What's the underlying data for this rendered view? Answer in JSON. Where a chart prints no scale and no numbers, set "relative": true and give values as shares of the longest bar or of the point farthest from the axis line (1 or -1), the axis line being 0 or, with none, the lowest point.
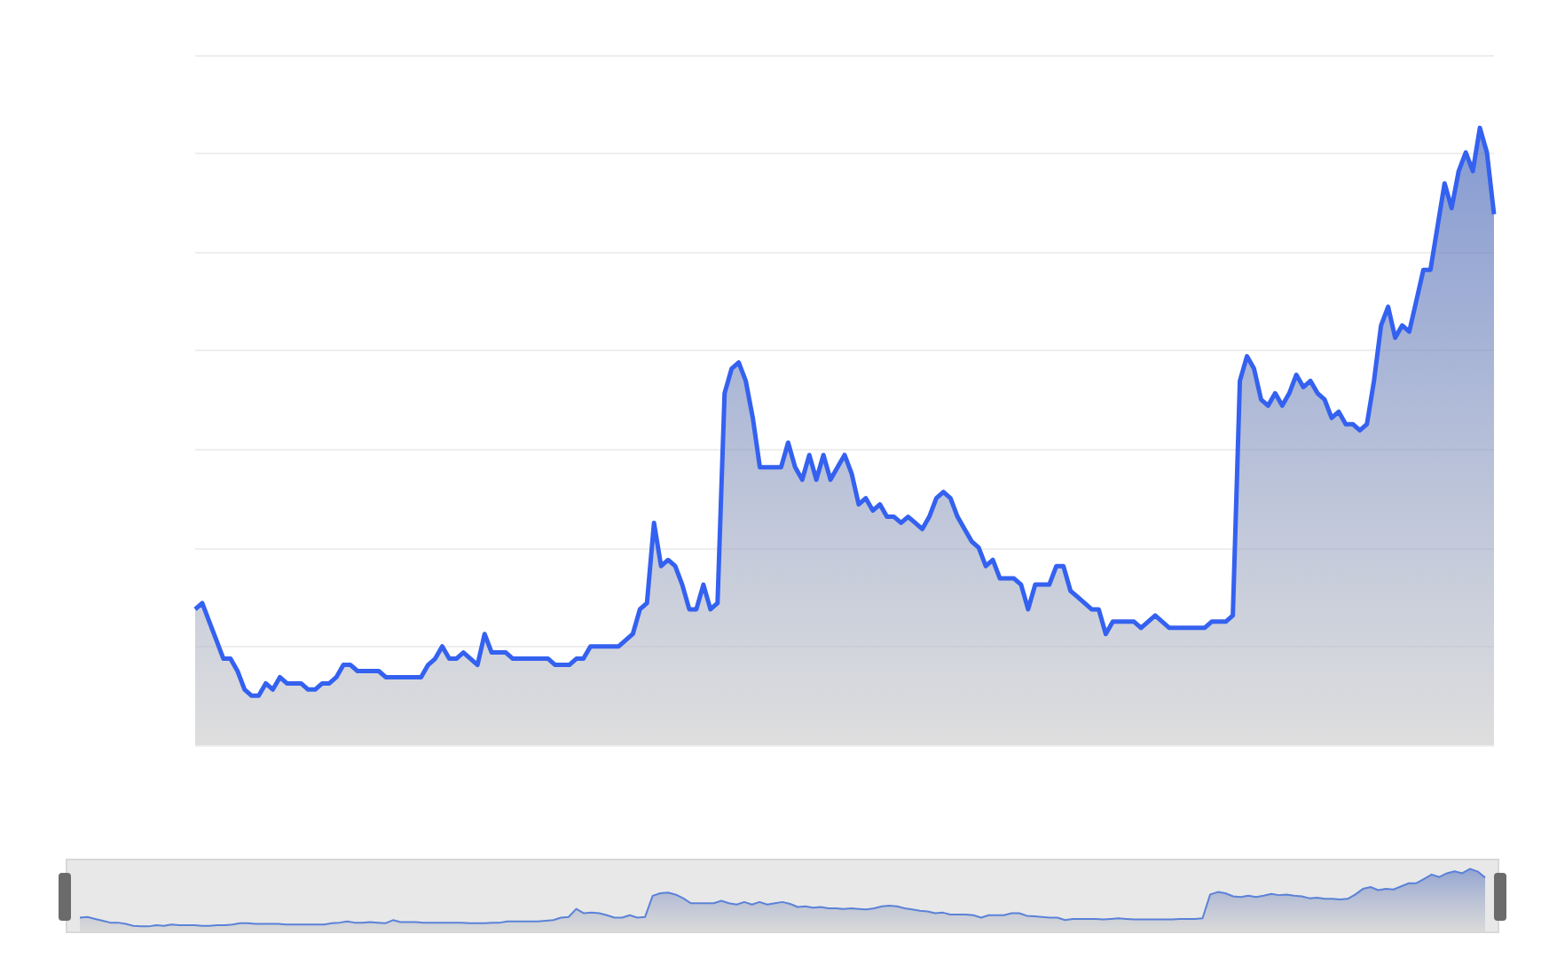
{
  "chart_data": [
    {
      "type": "area",
      "relative": true,
      "grid": "y",
      "line_style": "solid",
      "categories": [
        null,
        null,
        null,
        null,
        null,
        null,
        null,
        null,
        null,
        null,
        null,
        null,
        null,
        null,
        null,
        null,
        null,
        null,
        null,
        null,
        null,
        null,
        null,
        null,
        null,
        null,
        null,
        null,
        null,
        null,
        null,
        null,
        null,
        null,
        null,
        null,
        null,
        null,
        null,
        null,
        null,
        null,
        null,
        null,
        null,
        null,
        null,
        null,
        null,
        null,
        null,
        null,
        null,
        null,
        null,
        null,
        null,
        null,
        null,
        null,
        null,
        null,
        null,
        null,
        null,
        null,
        null,
        null,
        null,
        null,
        null,
        null,
        null,
        null,
        null,
        null,
        null,
        null,
        null,
        null,
        null,
        null,
        null,
        null,
        null,
        null,
        null,
        null,
        null,
        null,
        null,
        null,
        null,
        null,
        null,
        null,
        null,
        null,
        null,
        null,
        null,
        null,
        null,
        null,
        null,
        null,
        null,
        null,
        null,
        null,
        null,
        null,
        null,
        null,
        null,
        null,
        null,
        null,
        null,
        null,
        null,
        null,
        null,
        null,
        null,
        null,
        null,
        null,
        null,
        null,
        null,
        null,
        null,
        null,
        null,
        null,
        null,
        null,
        null,
        null,
        null,
        null,
        null,
        null,
        null,
        null,
        null,
        null,
        null,
        null,
        null,
        null,
        null,
        null,
        null,
        null,
        null,
        null,
        null,
        null,
        null,
        null,
        null,
        null,
        null,
        null,
        null,
        null,
        null,
        null,
        null,
        null,
        null,
        null,
        null,
        null,
        null,
        null,
        null,
        null,
        null,
        null,
        null,
        null,
        null
      ],
      "series": [
        {
          "color": "#3461f0",
          "values": [
            0.22,
            0.23,
            0.2,
            0.17,
            0.14,
            0.14,
            0.12,
            0.09,
            0.08,
            0.08,
            0.1,
            0.09,
            0.11,
            0.1,
            0.1,
            0.1,
            0.09,
            0.09,
            0.1,
            0.1,
            0.11,
            0.13,
            0.13,
            0.12,
            0.12,
            0.12,
            0.12,
            0.11,
            0.11,
            0.11,
            0.11,
            0.11,
            0.11,
            0.13,
            0.14,
            0.16,
            0.14,
            0.14,
            0.15,
            0.14,
            0.13,
            0.18,
            0.15,
            0.15,
            0.15,
            0.14,
            0.14,
            0.14,
            0.14,
            0.14,
            0.14,
            0.13,
            0.13,
            0.13,
            0.14,
            0.14,
            0.16,
            0.16,
            0.16,
            0.16,
            0.16,
            0.17,
            0.18,
            0.22,
            0.23,
            0.36,
            0.29,
            0.3,
            0.29,
            0.26,
            0.22,
            0.22,
            0.26,
            0.22,
            0.23,
            0.57,
            0.61,
            0.62,
            0.59,
            0.53,
            0.45,
            0.45,
            0.45,
            0.45,
            0.49,
            0.45,
            0.43,
            0.47,
            0.43,
            0.47,
            0.43,
            0.45,
            0.47,
            0.44,
            0.39,
            0.4,
            0.38,
            0.39,
            0.37,
            0.37,
            0.36,
            0.37,
            0.36,
            0.35,
            0.37,
            0.4,
            0.41,
            0.4,
            0.37,
            0.35,
            0.33,
            0.32,
            0.29,
            0.3,
            0.27,
            0.27,
            0.27,
            0.26,
            0.22,
            0.26,
            0.26,
            0.26,
            0.29,
            0.29,
            0.25,
            0.24,
            0.23,
            0.22,
            0.22,
            0.18,
            0.2,
            0.2,
            0.2,
            0.2,
            0.19,
            0.2,
            0.21,
            0.2,
            0.19,
            0.19,
            0.19,
            0.19,
            0.19,
            0.19,
            0.2,
            0.2,
            0.2,
            0.21,
            0.59,
            0.63,
            0.61,
            0.56,
            0.55,
            0.57,
            0.55,
            0.57,
            0.6,
            0.58,
            0.59,
            0.57,
            0.56,
            0.53,
            0.54,
            0.52,
            0.52,
            0.51,
            0.52,
            0.59,
            0.68,
            0.71,
            0.66,
            0.68,
            0.67,
            0.72,
            0.77,
            0.77,
            0.84,
            0.91,
            0.87,
            0.93,
            0.96,
            0.93,
            1,
            0.96,
            0.86
          ]
        }
      ]
    },
    {
      "type": "area",
      "relative": true,
      "categories": [
        null,
        null,
        null,
        null,
        null,
        null,
        null,
        null,
        null,
        null,
        null,
        null,
        null,
        null,
        null,
        null,
        null,
        null,
        null,
        null,
        null,
        null,
        null,
        null,
        null,
        null,
        null,
        null,
        null,
        null,
        null,
        null,
        null,
        null,
        null,
        null,
        null,
        null,
        null,
        null,
        null,
        null,
        null,
        null,
        null,
        null,
        null,
        null,
        null,
        null,
        null,
        null,
        null,
        null,
        null,
        null,
        null,
        null,
        null,
        null,
        null,
        null,
        null,
        null,
        null,
        null,
        null,
        null,
        null,
        null,
        null,
        null,
        null,
        null,
        null,
        null,
        null,
        null,
        null,
        null,
        null,
        null,
        null,
        null,
        null,
        null,
        null,
        null,
        null,
        null,
        null,
        null,
        null,
        null,
        null,
        null,
        null,
        null,
        null,
        null,
        null,
        null,
        null,
        null,
        null,
        null,
        null,
        null,
        null,
        null,
        null,
        null,
        null,
        null,
        null,
        null,
        null,
        null,
        null,
        null,
        null,
        null,
        null,
        null,
        null,
        null,
        null,
        null,
        null,
        null,
        null,
        null,
        null,
        null,
        null,
        null,
        null,
        null,
        null,
        null,
        null,
        null,
        null,
        null,
        null,
        null,
        null,
        null,
        null,
        null,
        null,
        null,
        null,
        null,
        null,
        null,
        null,
        null,
        null,
        null,
        null,
        null,
        null,
        null,
        null,
        null,
        null,
        null,
        null,
        null,
        null,
        null,
        null,
        null,
        null,
        null,
        null,
        null,
        null,
        null,
        null,
        null,
        null,
        null,
        null
      ],
      "series": [
        {
          "color": "#5b82d8",
          "values": [
            0.22,
            0.23,
            0.2,
            0.17,
            0.14,
            0.14,
            0.12,
            0.09,
            0.08,
            0.08,
            0.1,
            0.09,
            0.11,
            0.1,
            0.1,
            0.1,
            0.09,
            0.09,
            0.1,
            0.1,
            0.11,
            0.13,
            0.13,
            0.12,
            0.12,
            0.12,
            0.12,
            0.11,
            0.11,
            0.11,
            0.11,
            0.11,
            0.11,
            0.13,
            0.14,
            0.16,
            0.14,
            0.14,
            0.15,
            0.14,
            0.13,
            0.18,
            0.15,
            0.15,
            0.15,
            0.14,
            0.14,
            0.14,
            0.14,
            0.14,
            0.14,
            0.13,
            0.13,
            0.13,
            0.14,
            0.14,
            0.16,
            0.16,
            0.16,
            0.16,
            0.16,
            0.17,
            0.18,
            0.22,
            0.23,
            0.36,
            0.29,
            0.3,
            0.29,
            0.26,
            0.22,
            0.22,
            0.26,
            0.22,
            0.23,
            0.57,
            0.61,
            0.62,
            0.59,
            0.53,
            0.45,
            0.45,
            0.45,
            0.45,
            0.49,
            0.45,
            0.43,
            0.47,
            0.43,
            0.47,
            0.43,
            0.45,
            0.47,
            0.44,
            0.39,
            0.4,
            0.38,
            0.39,
            0.37,
            0.37,
            0.36,
            0.37,
            0.36,
            0.35,
            0.37,
            0.4,
            0.41,
            0.4,
            0.37,
            0.35,
            0.33,
            0.32,
            0.29,
            0.3,
            0.27,
            0.27,
            0.27,
            0.26,
            0.22,
            0.26,
            0.26,
            0.26,
            0.29,
            0.29,
            0.25,
            0.24,
            0.23,
            0.22,
            0.22,
            0.18,
            0.2,
            0.2,
            0.2,
            0.2,
            0.19,
            0.2,
            0.21,
            0.2,
            0.19,
            0.19,
            0.19,
            0.19,
            0.19,
            0.19,
            0.2,
            0.2,
            0.2,
            0.21,
            0.59,
            0.63,
            0.61,
            0.56,
            0.55,
            0.57,
            0.55,
            0.57,
            0.6,
            0.58,
            0.59,
            0.57,
            0.56,
            0.53,
            0.54,
            0.52,
            0.52,
            0.51,
            0.52,
            0.59,
            0.68,
            0.71,
            0.66,
            0.68,
            0.67,
            0.72,
            0.77,
            0.77,
            0.84,
            0.91,
            0.87,
            0.93,
            0.96,
            0.93,
            1,
            0.96,
            0.86
          ]
        }
      ]
    }
  ]
}
